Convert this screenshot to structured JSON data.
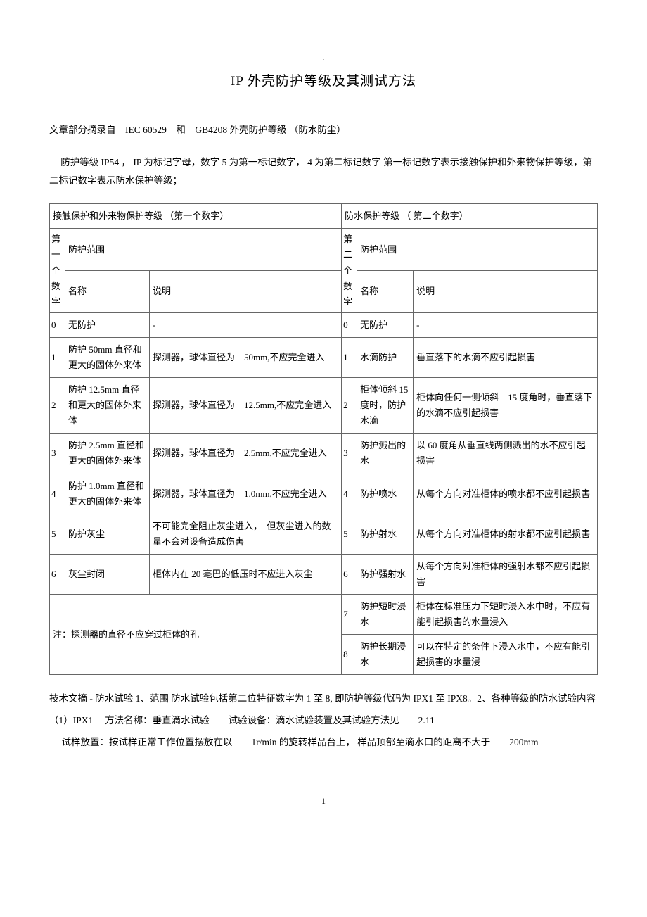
{
  "title": "IP 外壳防护等级及其测试方法",
  "intro1": "文章部分摘录自　IEC 60529　和　GB4208 外壳防护等级 （防水防尘）",
  "intro2": "防护等级 IP54 ， IP 为标记字母，数字 5 为第一标记数字， 4 为第二标记数字 第一标记数字表示接触保护和外来物保护等级，第二标记数字表示防水保护等级；",
  "table": {
    "left_header": "接触保护和外来物保护等级 （第一个数字）",
    "right_header": "防水保护等级 （ 第二个数字）",
    "col_d1_label": "第一个数字",
    "col_range_label": "防护范围",
    "col_name_label": "名称",
    "col_desc_label": "说明",
    "col_d2_label": "第二个数字",
    "col_range_label2": "防护范围",
    "col_name_label2": "名称",
    "col_desc_label2": "说明",
    "rows_left": [
      {
        "n": "0",
        "name": "无防护",
        "desc": "-"
      },
      {
        "n": "1",
        "name": "防护 50mm 直径和更大的固体外来体",
        "desc": "探测器，球体直径为　50mm,不应完全进入"
      },
      {
        "n": "2",
        "name": "防护 12.5mm 直径和更大的固体外来体",
        "desc": "探测器，球体直径为　12.5mm,不应完全进入"
      },
      {
        "n": "3",
        "name": "防护 2.5mm 直径和更大的固体外来体",
        "desc": "探测器，球体直径为　2.5mm,不应完全进入"
      },
      {
        "n": "4",
        "name": "防护 1.0mm 直径和更大的固体外来体",
        "desc": "探测器，球体直径为　1.0mm,不应完全进入"
      },
      {
        "n": "5",
        "name": "防护灰尘",
        "desc": "不可能完全阻止灰尘进入，　但灰尘进入的数量不会对设备造成伤害"
      },
      {
        "n": "6",
        "name": "灰尘封闭",
        "desc": "柜体内在 20 毫巴的低压时不应进入灰尘"
      }
    ],
    "rows_right": [
      {
        "n": "0",
        "name": "无防护",
        "desc": "-"
      },
      {
        "n": "1",
        "name": "水滴防护",
        "desc": "垂直落下的水滴不应引起损害"
      },
      {
        "n": "2",
        "name": "柜体倾斜 15 度时，防护水滴",
        "desc": "柜体向任何一侧倾斜　15 度角时，垂直落下的水滴不应引起损害"
      },
      {
        "n": "3",
        "name": "防护溅出的水",
        "desc": "以 60 度角从垂直线两侧溅出的水不应引起损害"
      },
      {
        "n": "4",
        "name": "防护喷水",
        "desc": "从每个方向对准柜体的喷水都不应引起损害"
      },
      {
        "n": "5",
        "name": "防护射水",
        "desc": "从每个方向对准柜体的射水都不应引起损害"
      },
      {
        "n": "6",
        "name": "防护强射水",
        "desc": "从每个方向对准柜体的强射水都不应引起损害"
      },
      {
        "n": "7",
        "name": "防护短时浸水",
        "desc": "柜体在标准压力下短时浸入水中时，不应有能引起损害的水量浸入"
      },
      {
        "n": "8",
        "name": "防护长期浸水",
        "desc": "可以在特定的条件下浸入水中，不应有能引起损害的水量浸"
      }
    ],
    "note": "注：探测器的直径不应穿过柜体的孔"
  },
  "post": {
    "p1": "技术文摘 - 防水试验 1、范围 防水试验包括第二位特征数字为 1 至 8, 即防护等级代码为 IPX1 至 IPX8。2、各种等级的防水试验内容",
    "p2": "（1）IPX1　 方法名称：垂直滴水试验　　试验设备：滴水试验装置及其试验方法见　　2.11",
    "p3": "试样放置：按试样正常工作位置摆放在以　　1r/min 的旋转样品台上， 样品顶部至滴水口的距离不大于　　200mm"
  },
  "pagenum": "1"
}
